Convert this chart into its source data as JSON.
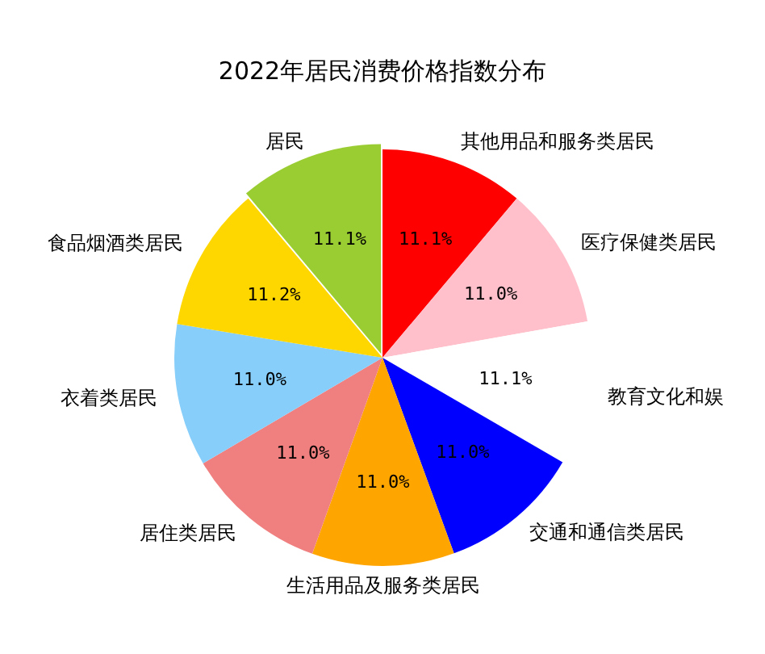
{
  "chart_data": {
    "type": "pie",
    "title": "2022年居民消费价格指数分布",
    "categories": [
      "其他用品和服务类居民",
      "医疗保健类居民",
      "教育文化和娱",
      "交通和通信类居民",
      "生活用品及服务类居民",
      "居住类居民",
      "衣着类居民",
      "食品烟酒类居民",
      "居民"
    ],
    "values": [
      11.1,
      11.0,
      11.1,
      11.0,
      11.0,
      11.0,
      11.0,
      11.2,
      11.1
    ],
    "value_labels": [
      "11.1%",
      "11.0%",
      "11.1%",
      "11.0%",
      "11.0%",
      "11.0%",
      "11.0%",
      "11.2%",
      "11.1%"
    ],
    "colors": [
      "#ff0000",
      "#ffc0cb",
      "#ffffff",
      "#0000ff",
      "#ffa500",
      "#f08080",
      "#87cefa",
      "#ffd700",
      "#9acd32"
    ]
  }
}
